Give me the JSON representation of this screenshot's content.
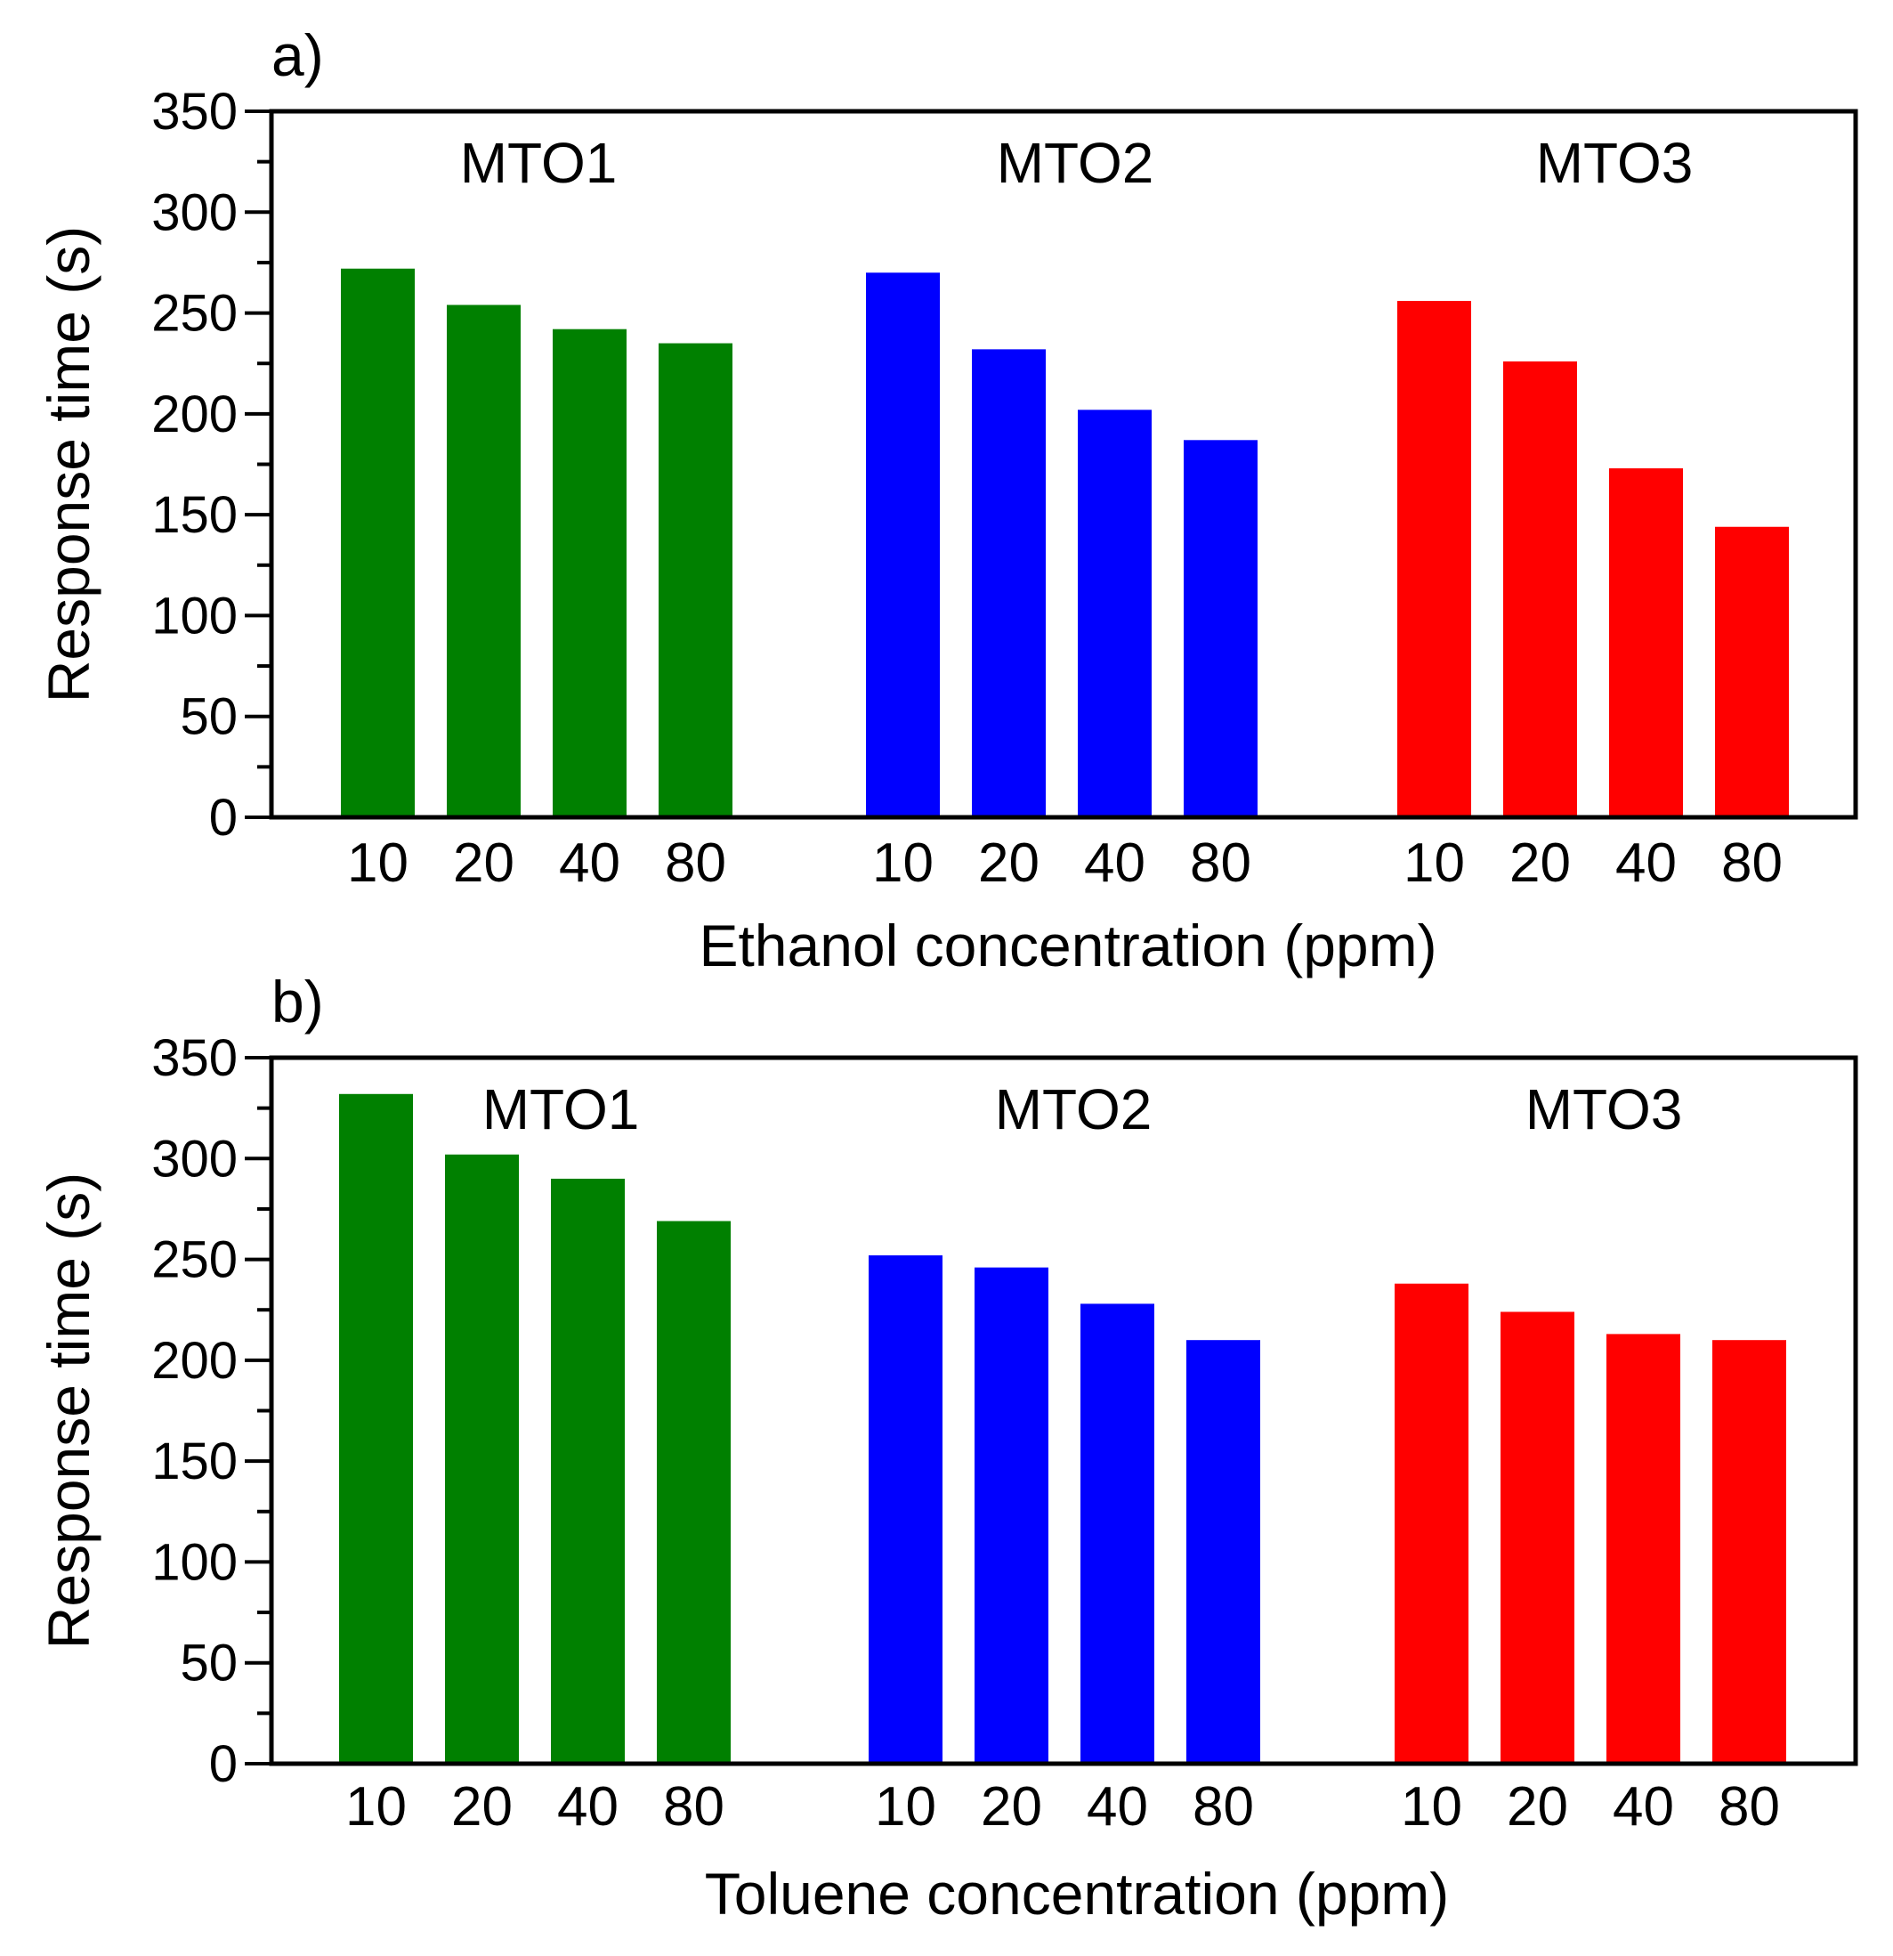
{
  "chart_data": [
    {
      "type": "bar",
      "panel_label": "a)",
      "title": "",
      "xlabel": "Ethanol concentration (ppm)",
      "ylabel": "Response time (s)",
      "ylim": [
        0,
        350
      ],
      "yticks": [
        0,
        50,
        100,
        150,
        200,
        250,
        300,
        350
      ],
      "categories": [
        "10",
        "20",
        "40",
        "80"
      ],
      "grid": false,
      "series": [
        {
          "name": "MTO1",
          "color": "#008000",
          "values": [
            272,
            254,
            242,
            235
          ]
        },
        {
          "name": "MTO2",
          "color": "#0000ff",
          "values": [
            270,
            232,
            202,
            187
          ]
        },
        {
          "name": "MTO3",
          "color": "#ff0000",
          "values": [
            256,
            226,
            173,
            144
          ]
        }
      ]
    },
    {
      "type": "bar",
      "panel_label": "b)",
      "title": "",
      "xlabel": "Toluene concentration (ppm)",
      "ylabel": "Response time (s)",
      "ylim": [
        0,
        350
      ],
      "yticks": [
        0,
        50,
        100,
        150,
        200,
        250,
        300,
        350
      ],
      "categories": [
        "10",
        "20",
        "40",
        "80"
      ],
      "grid": false,
      "series": [
        {
          "name": "MTO1",
          "color": "#008000",
          "values": [
            332,
            302,
            290,
            269
          ]
        },
        {
          "name": "MTO2",
          "color": "#0000ff",
          "values": [
            252,
            246,
            228,
            210
          ]
        },
        {
          "name": "MTO3",
          "color": "#ff0000",
          "values": [
            238,
            224,
            213,
            210
          ]
        }
      ]
    }
  ]
}
